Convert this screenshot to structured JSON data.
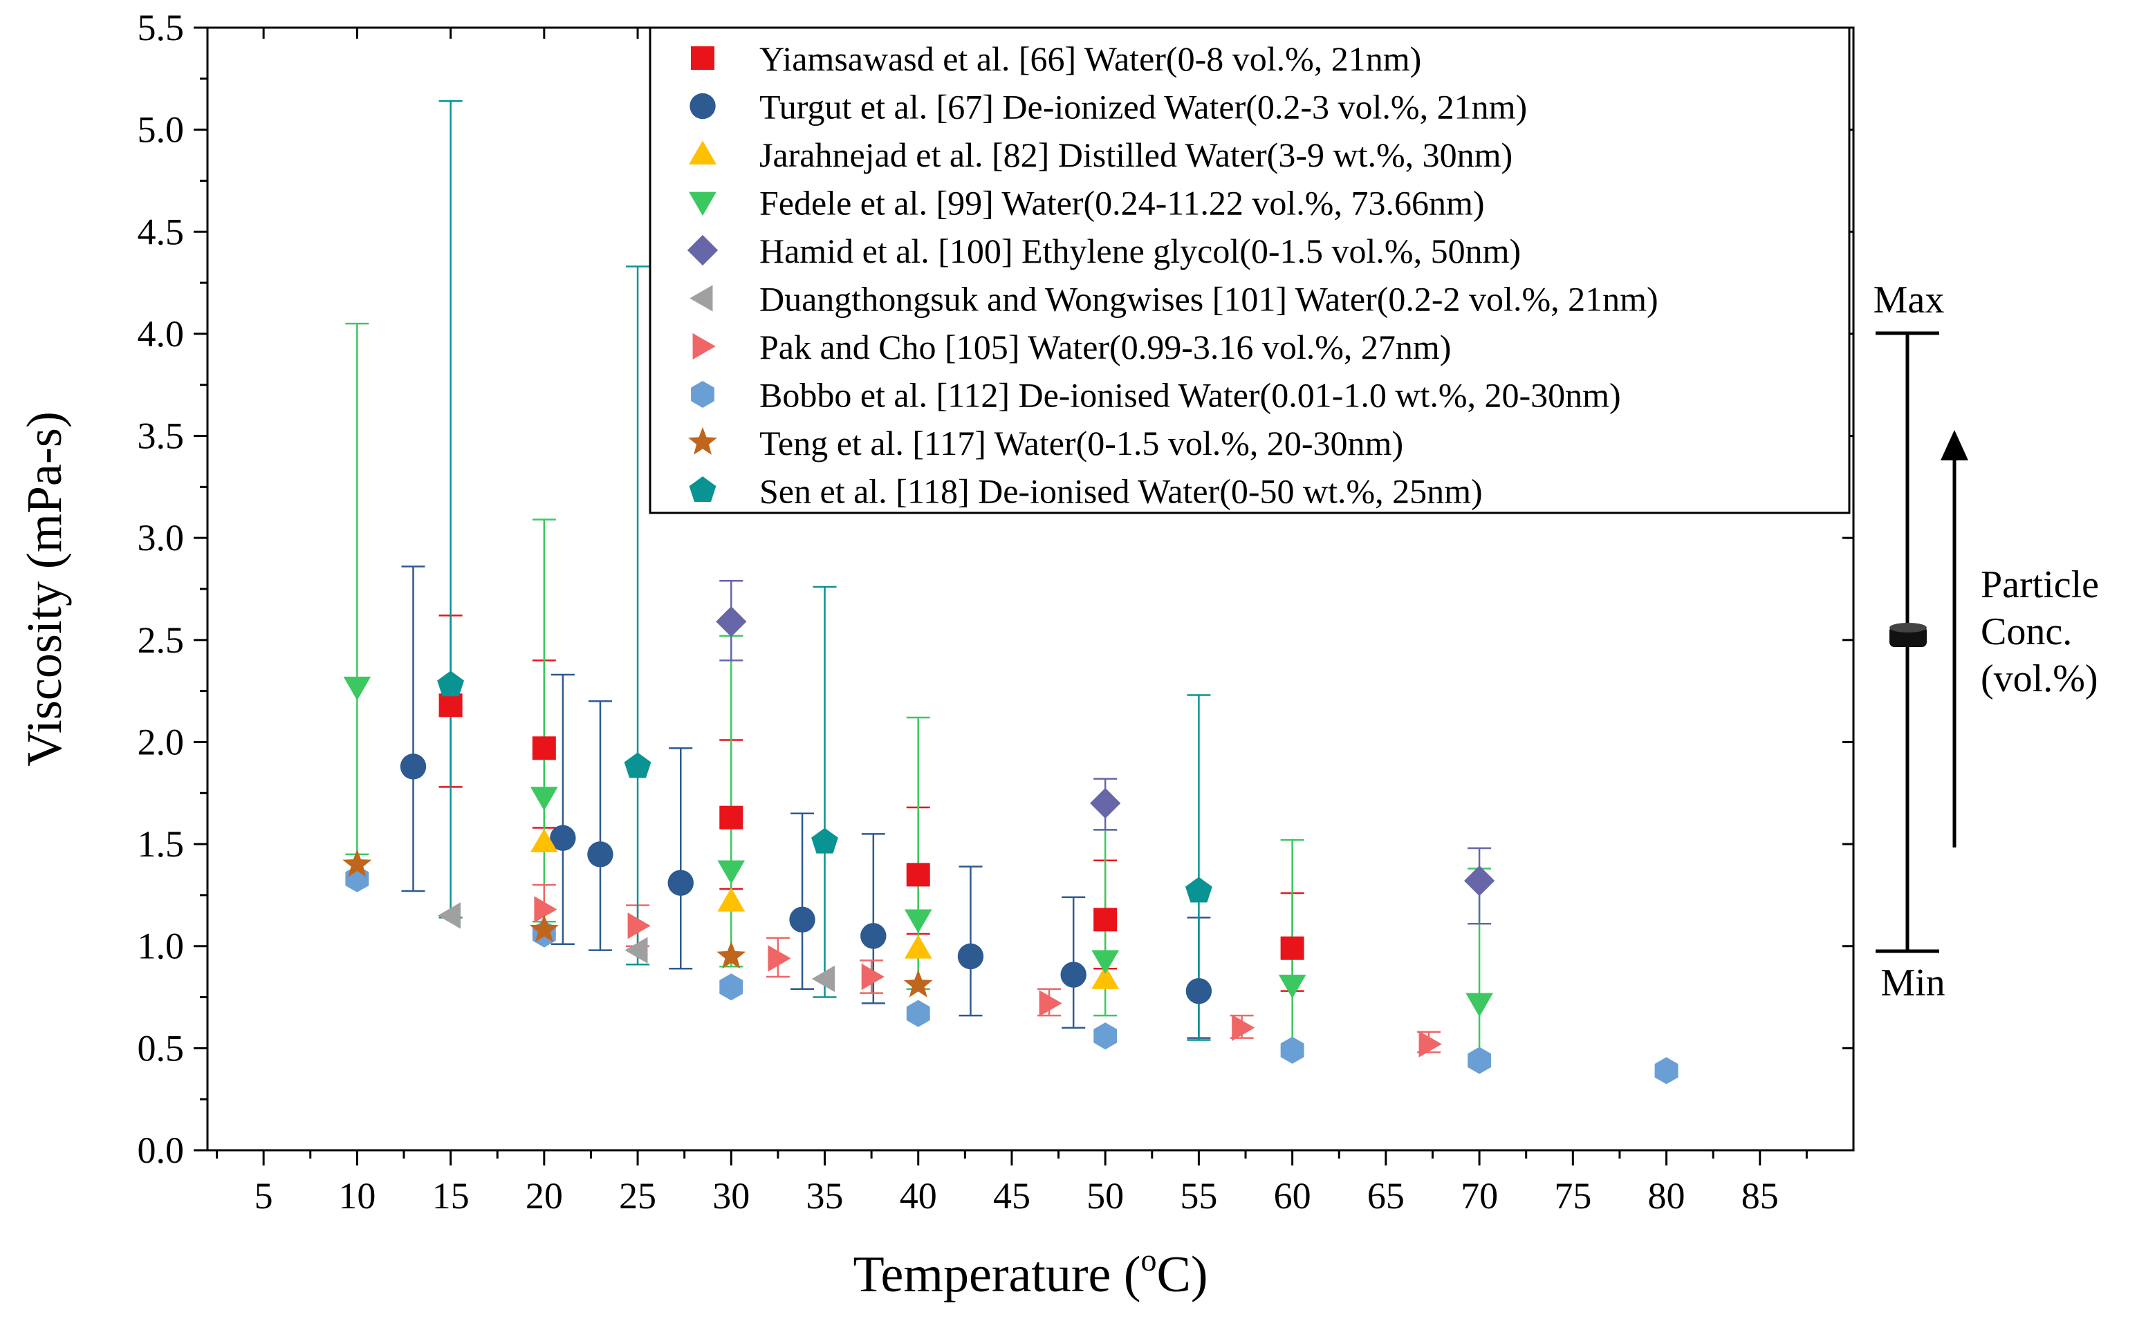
{
  "chart_data": {
    "type": "scatter",
    "xlabel": "Temperature (",
    "xlabel_sup": "o",
    "xlabel_end": "C)",
    "ylabel": "Viscosity (mPa-s)",
    "xlim": [
      2,
      90
    ],
    "ylim": [
      0,
      5.5
    ],
    "xticks": [
      5,
      10,
      15,
      20,
      25,
      30,
      35,
      40,
      45,
      50,
      55,
      60,
      65,
      70,
      75,
      80,
      85
    ],
    "yticks": [
      "0.0",
      "0.5",
      "1.0",
      "1.5",
      "2.0",
      "2.5",
      "3.0",
      "3.5",
      "4.0",
      "4.5",
      "5.0",
      "5.5"
    ],
    "series": [
      {
        "name": "Yiamsawasd et al. [66] Water(0-8 vol.%, 21nm)",
        "marker": "square",
        "color": "#e8141a",
        "points": [
          {
            "x": 15,
            "y": 2.18,
            "lo": 1.78,
            "hi": 2.62
          },
          {
            "x": 20,
            "y": 1.97,
            "lo": 1.58,
            "hi": 2.4
          },
          {
            "x": 30,
            "y": 1.63,
            "lo": 1.28,
            "hi": 2.01
          },
          {
            "x": 40,
            "y": 1.35,
            "lo": 1.06,
            "hi": 1.68
          },
          {
            "x": 50,
            "y": 1.13,
            "lo": 0.89,
            "hi": 1.42
          },
          {
            "x": 60,
            "y": 0.99,
            "lo": 0.78,
            "hi": 1.26
          }
        ]
      },
      {
        "name": "Turgut et al. [67] De-ionized Water(0.2-3 vol.%, 21nm)",
        "marker": "circle",
        "color": "#2c5a91",
        "points": [
          {
            "x": 13,
            "y": 1.88,
            "lo": 1.27,
            "hi": 2.86
          },
          {
            "x": 21,
            "y": 1.53,
            "lo": 1.01,
            "hi": 2.33
          },
          {
            "x": 23,
            "y": 1.45,
            "lo": 0.98,
            "hi": 2.2
          },
          {
            "x": 27.3,
            "y": 1.31,
            "lo": 0.89,
            "hi": 1.97
          },
          {
            "x": 33.8,
            "y": 1.13,
            "lo": 0.79,
            "hi": 1.65
          },
          {
            "x": 37.6,
            "y": 1.05,
            "lo": 0.72,
            "hi": 1.55
          },
          {
            "x": 42.8,
            "y": 0.95,
            "lo": 0.66,
            "hi": 1.39
          },
          {
            "x": 48.3,
            "y": 0.86,
            "lo": 0.6,
            "hi": 1.24
          },
          {
            "x": 55,
            "y": 0.78,
            "lo": 0.55,
            "hi": 1.14
          }
        ]
      },
      {
        "name": "Jarahnejad et al. [82] Distilled Water(3-9 wt.%, 30nm)",
        "marker": "triangle-up",
        "color": "#ffc000",
        "points": [
          {
            "x": 20,
            "y": 1.51
          },
          {
            "x": 30,
            "y": 1.22
          },
          {
            "x": 40,
            "y": 0.99
          },
          {
            "x": 50,
            "y": 0.84
          }
        ]
      },
      {
        "name": "Fedele et al. [99] Water(0.24-11.22 vol.%, 73.66nm)",
        "marker": "triangle-down",
        "color": "#3cc860",
        "points": [
          {
            "x": 10,
            "y": 2.27,
            "lo": 1.45,
            "hi": 4.05
          },
          {
            "x": 20,
            "y": 1.73,
            "lo": 1.12,
            "hi": 3.09
          },
          {
            "x": 30,
            "y": 1.37,
            "lo": 0.9,
            "hi": 2.52
          },
          {
            "x": 40,
            "y": 1.13,
            "lo": 0.79,
            "hi": 2.12
          },
          {
            "x": 50,
            "y": 0.93,
            "lo": 0.66,
            "hi": 1.57
          },
          {
            "x": 60,
            "y": 0.81,
            "lo": 0.5,
            "hi": 1.52
          },
          {
            "x": 70,
            "y": 0.72,
            "lo": 0.45,
            "hi": 1.38
          }
        ]
      },
      {
        "name": "Hamid et al. [100] Ethylene glycol(0-1.5 vol.%, 50nm)",
        "marker": "diamond",
        "color": "#6666a8",
        "points": [
          {
            "x": 30,
            "y": 2.59,
            "lo": 2.4,
            "hi": 2.79
          },
          {
            "x": 50,
            "y": 1.7,
            "lo": 1.57,
            "hi": 1.82
          },
          {
            "x": 70,
            "y": 1.32,
            "lo": 1.11,
            "hi": 1.48
          }
        ]
      },
      {
        "name": "Duangthongsuk and Wongwises [101] Water(0.2-2 vol.%, 21nm)",
        "marker": "triangle-left",
        "color": "#a0a0a0",
        "points": [
          {
            "x": 15,
            "y": 1.15
          },
          {
            "x": 25,
            "y": 0.98
          },
          {
            "x": 35,
            "y": 0.84
          }
        ]
      },
      {
        "name": "Pak and Cho [105] Water(0.99-3.16 vol.%, 27nm)",
        "marker": "triangle-right",
        "color": "#f06666",
        "points": [
          {
            "x": 20,
            "y": 1.18,
            "lo": 1.06,
            "hi": 1.3
          },
          {
            "x": 25,
            "y": 1.1,
            "lo": 1.0,
            "hi": 1.2
          },
          {
            "x": 32.5,
            "y": 0.94,
            "lo": 0.85,
            "hi": 1.04
          },
          {
            "x": 37.5,
            "y": 0.85,
            "lo": 0.77,
            "hi": 0.93
          },
          {
            "x": 47,
            "y": 0.72,
            "lo": 0.66,
            "hi": 0.79
          },
          {
            "x": 57.3,
            "y": 0.6,
            "lo": 0.55,
            "hi": 0.66
          },
          {
            "x": 67.3,
            "y": 0.52,
            "lo": 0.48,
            "hi": 0.58
          }
        ]
      },
      {
        "name": "Bobbo et al. [112] De-ionised Water(0.01-1.0 wt.%, 20-30nm)",
        "marker": "hexagon",
        "color": "#6a9fd5",
        "points": [
          {
            "x": 10,
            "y": 1.33
          },
          {
            "x": 20,
            "y": 1.06
          },
          {
            "x": 30,
            "y": 0.8
          },
          {
            "x": 40,
            "y": 0.67
          },
          {
            "x": 50,
            "y": 0.56
          },
          {
            "x": 60,
            "y": 0.49
          },
          {
            "x": 70,
            "y": 0.44
          },
          {
            "x": 80,
            "y": 0.39
          }
        ]
      },
      {
        "name": "Teng et al. [117] Water(0-1.5 vol.%, 20-30nm)",
        "marker": "star",
        "color": "#c0651c",
        "points": [
          {
            "x": 10,
            "y": 1.4
          },
          {
            "x": 20,
            "y": 1.08
          },
          {
            "x": 30,
            "y": 0.95
          },
          {
            "x": 40,
            "y": 0.81
          }
        ]
      },
      {
        "name": "Sen et al. [118] De-ionised Water(0-50 wt.%, 25nm)",
        "marker": "pentagon",
        "color": "#0a9393",
        "points": [
          {
            "x": 15,
            "y": 2.28,
            "lo": 1.14,
            "hi": 5.14
          },
          {
            "x": 25,
            "y": 1.88,
            "lo": 0.91,
            "hi": 4.33
          },
          {
            "x": 35,
            "y": 1.51,
            "lo": 0.75,
            "hi": 2.76
          },
          {
            "x": 55,
            "y": 1.27,
            "lo": 0.54,
            "hi": 2.23
          }
        ]
      }
    ],
    "annotation": {
      "max_label": "Max",
      "min_label": "Min",
      "text_lines": [
        "Particle",
        "Conc.",
        "(vol.%)"
      ]
    }
  }
}
